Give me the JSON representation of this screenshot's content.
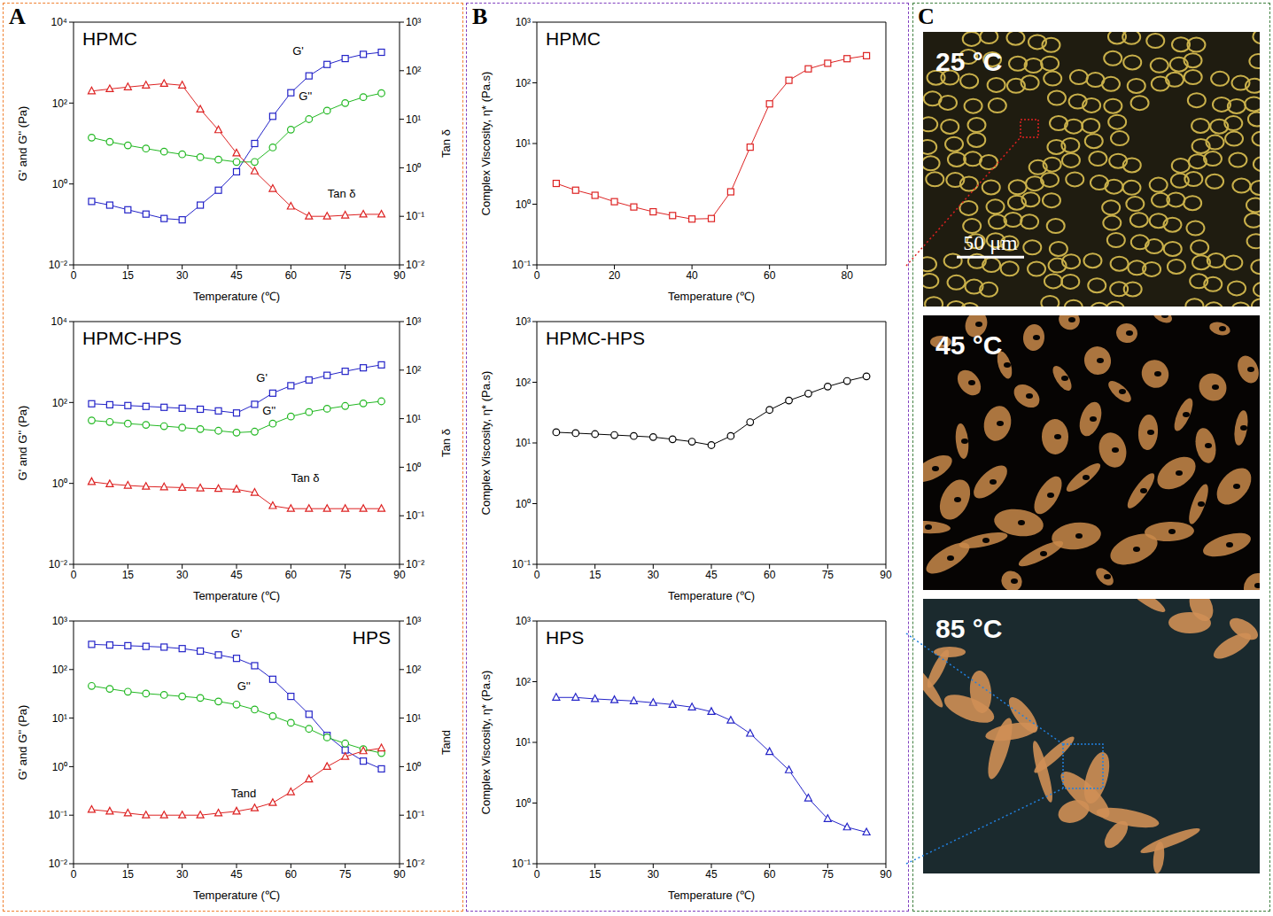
{
  "panel_letters": [
    "A",
    "B",
    "C"
  ],
  "chart_data": [
    {
      "type": "line",
      "title": "HPMC",
      "x_label": "Temperature (℃)",
      "y_label": "G' and G'' (Pa)",
      "y2_label": "Tan δ",
      "log": true,
      "x": [
        5,
        10,
        15,
        20,
        25,
        30,
        35,
        40,
        45,
        50,
        55,
        60,
        65,
        70,
        75,
        80,
        85
      ],
      "xlim": [
        0,
        90
      ],
      "xticks": [
        0,
        15,
        30,
        45,
        60,
        75,
        90
      ],
      "ylim": [
        0.01,
        10000
      ],
      "yticks": [
        {
          "value": 0.01,
          "label": "10⁻²"
        },
        {
          "value": 1,
          "label": "10⁰"
        },
        {
          "value": 100,
          "label": "10²"
        },
        {
          "value": 10000,
          "label": "10⁴"
        }
      ],
      "y2lim": [
        0.01,
        1000
      ],
      "y2ticks": [
        {
          "value": 0.01,
          "label": "10⁻²"
        },
        {
          "value": 0.1,
          "label": "10⁻¹"
        },
        {
          "value": 1,
          "label": "10⁰"
        },
        {
          "value": 10,
          "label": "10¹"
        },
        {
          "value": 100,
          "label": "10²"
        },
        {
          "value": 1000,
          "label": "10³"
        }
      ],
      "series": [
        {
          "name": "G'",
          "color": "#2424c8",
          "marker": "square",
          "values": [
            0.37,
            0.3,
            0.23,
            0.18,
            0.14,
            0.13,
            0.3,
            0.7,
            2,
            10,
            47,
            180,
            470,
            900,
            1260,
            1600,
            1800
          ]
        },
        {
          "name": "G''",
          "color": "#22b822",
          "marker": "circle",
          "values": [
            14,
            11,
            9,
            7.5,
            6.3,
            5.4,
            4.6,
            4,
            3.5,
            3.5,
            8,
            22,
            40,
            65,
            100,
            140,
            175
          ]
        },
        {
          "name": "Tan δ",
          "color": "#dd2222",
          "marker": "triangle",
          "axis": "y2",
          "values": [
            38,
            42,
            46,
            50,
            54,
            50,
            16,
            6,
            2,
            0.85,
            0.37,
            0.16,
            0.1,
            0.1,
            0.105,
            0.11,
            0.11
          ]
        }
      ],
      "annotations": [
        {
          "text": "G'",
          "x": 62,
          "y": 2000,
          "axis": "y"
        },
        {
          "text": "G''",
          "x": 64,
          "y": 150,
          "axis": "y"
        },
        {
          "text": "Tan δ",
          "x": 74,
          "y": 0.3,
          "axis": "y2"
        }
      ]
    },
    {
      "type": "line",
      "title": "HPMC-HPS",
      "x_label": "Temperature (℃)",
      "y_label": "G' and G'' (Pa)",
      "y2_label": "Tan δ",
      "log": true,
      "x": [
        5,
        10,
        15,
        20,
        25,
        30,
        35,
        40,
        45,
        50,
        55,
        60,
        65,
        70,
        75,
        80,
        85
      ],
      "xlim": [
        0,
        90
      ],
      "xticks": [
        0,
        15,
        30,
        45,
        60,
        75,
        90
      ],
      "ylim": [
        0.01,
        10000
      ],
      "yticks": [
        {
          "value": 0.01,
          "label": "10⁻²"
        },
        {
          "value": 1,
          "label": "10⁰"
        },
        {
          "value": 100,
          "label": "10²"
        },
        {
          "value": 10000,
          "label": "10⁴"
        }
      ],
      "y2lim": [
        0.01,
        1000
      ],
      "y2ticks": [
        {
          "value": 0.01,
          "label": "10⁻²"
        },
        {
          "value": 0.1,
          "label": "10⁻¹"
        },
        {
          "value": 1,
          "label": "10⁰"
        },
        {
          "value": 10,
          "label": "10¹"
        },
        {
          "value": 100,
          "label": "10²"
        },
        {
          "value": 1000,
          "label": "10³"
        }
      ],
      "series": [
        {
          "name": "G'",
          "color": "#2424c8",
          "marker": "square",
          "values": [
            93,
            88,
            84,
            80,
            76,
            72,
            68,
            62,
            55,
            90,
            170,
            260,
            360,
            470,
            590,
            720,
            850
          ]
        },
        {
          "name": "G''",
          "color": "#22b822",
          "marker": "circle",
          "values": [
            36,
            33,
            30,
            28,
            26,
            24,
            22,
            20,
            18,
            19,
            30,
            45,
            58,
            70,
            82,
            95,
            107
          ]
        },
        {
          "name": "Tan δ",
          "color": "#dd2222",
          "marker": "triangle",
          "axis": "y2",
          "values": [
            0.5,
            0.45,
            0.42,
            0.4,
            0.39,
            0.38,
            0.37,
            0.36,
            0.35,
            0.3,
            0.16,
            0.14,
            0.14,
            0.14,
            0.14,
            0.14,
            0.14
          ]
        }
      ],
      "annotations": [
        {
          "text": "G'",
          "x": 52,
          "y": 400,
          "axis": "y"
        },
        {
          "text": "G''",
          "x": 54,
          "y": 62,
          "axis": "y"
        },
        {
          "text": "Tan δ",
          "x": 64,
          "y": 0.6,
          "axis": "y2"
        }
      ]
    },
    {
      "type": "line",
      "title": "HPS",
      "x_label": "Temperature (℃)",
      "y_label": "G' and G'' (Pa)",
      "y2_label": "Tand",
      "log": true,
      "x": [
        5,
        10,
        15,
        20,
        25,
        30,
        35,
        40,
        45,
        50,
        55,
        60,
        65,
        70,
        75,
        80,
        85
      ],
      "xlim": [
        0,
        90
      ],
      "xticks": [
        0,
        15,
        30,
        45,
        60,
        75,
        90
      ],
      "ylim": [
        0.01,
        1000
      ],
      "yticks": [
        {
          "value": 0.01,
          "label": "10⁻²"
        },
        {
          "value": 0.1,
          "label": "10⁻¹"
        },
        {
          "value": 1,
          "label": "10⁰"
        },
        {
          "value": 10,
          "label": "10¹"
        },
        {
          "value": 100,
          "label": "10²"
        },
        {
          "value": 1000,
          "label": "10³"
        }
      ],
      "y2lim": [
        0.01,
        1000
      ],
      "y2ticks": [
        {
          "value": 0.01,
          "label": "10⁻²"
        },
        {
          "value": 0.1,
          "label": "10⁻¹"
        },
        {
          "value": 1,
          "label": "10⁰"
        },
        {
          "value": 10,
          "label": "10¹"
        },
        {
          "value": 100,
          "label": "10²"
        },
        {
          "value": 1000,
          "label": "10³"
        }
      ],
      "series": [
        {
          "name": "G'",
          "color": "#2424c8",
          "marker": "square",
          "values": [
            330,
            320,
            310,
            300,
            290,
            270,
            240,
            200,
            170,
            120,
            63,
            28,
            12,
            4.4,
            2.2,
            1.3,
            0.9
          ]
        },
        {
          "name": "G''",
          "color": "#22b822",
          "marker": "circle",
          "values": [
            46,
            40,
            35,
            32,
            30,
            28,
            26,
            22,
            19,
            15,
            11,
            8,
            6,
            4,
            3,
            2.3,
            1.9
          ]
        },
        {
          "name": "Tand",
          "color": "#dd2222",
          "marker": "triangle",
          "axis": "y2",
          "values": [
            0.13,
            0.12,
            0.11,
            0.1,
            0.1,
            0.1,
            0.1,
            0.11,
            0.12,
            0.14,
            0.18,
            0.3,
            0.55,
            1,
            1.6,
            2.1,
            2.4
          ]
        }
      ],
      "annotations": [
        {
          "text": "G'",
          "x": 45,
          "y": 550,
          "axis": "y"
        },
        {
          "text": "G''",
          "x": 47,
          "y": 45,
          "axis": "y"
        },
        {
          "text": "Tand",
          "x": 47,
          "y": 0.28,
          "axis": "y2"
        }
      ]
    },
    {
      "type": "line",
      "title": "HPMC",
      "x_label": "Temperature (℃)",
      "y_label": "Complex Viscosity, η* (Pa.s)",
      "log": "y",
      "x": [
        5,
        10,
        15,
        20,
        25,
        30,
        35,
        40,
        45,
        50,
        55,
        60,
        65,
        70,
        75,
        80,
        85
      ],
      "xlim": [
        0,
        90
      ],
      "xticks": [
        0,
        20,
        40,
        60,
        80
      ],
      "ylim": [
        0.1,
        1000
      ],
      "yticks": [
        {
          "value": 0.1,
          "label": "10⁻¹"
        },
        {
          "value": 1,
          "label": "10⁰"
        },
        {
          "value": 10,
          "label": "10¹"
        },
        {
          "value": 100,
          "label": "10²"
        },
        {
          "value": 1000,
          "label": "10³"
        }
      ],
      "series": [
        {
          "name": "HPMC",
          "color": "#dd2222",
          "marker": "square",
          "values": [
            2.2,
            1.7,
            1.4,
            1.1,
            0.9,
            0.75,
            0.65,
            0.57,
            0.58,
            1.6,
            8.7,
            45,
            110,
            170,
            210,
            250,
            280
          ]
        }
      ]
    },
    {
      "type": "line",
      "title": "HPMC-HPS",
      "x_label": "Temperature (℃)",
      "y_label": "Complex Viscosity, η* (Pa.s)",
      "log": "y",
      "x": [
        5,
        10,
        15,
        20,
        25,
        30,
        35,
        40,
        45,
        50,
        55,
        60,
        65,
        70,
        75,
        80,
        85
      ],
      "xlim": [
        0,
        90
      ],
      "xticks": [
        0,
        15,
        30,
        45,
        60,
        75,
        90
      ],
      "ylim": [
        0.1,
        1000
      ],
      "yticks": [
        {
          "value": 0.1,
          "label": "10⁻¹"
        },
        {
          "value": 1,
          "label": "10⁰"
        },
        {
          "value": 10,
          "label": "10¹"
        },
        {
          "value": 100,
          "label": "10²"
        },
        {
          "value": 1000,
          "label": "10³"
        }
      ],
      "series": [
        {
          "name": "HPMC-HPS",
          "color": "#000000",
          "marker": "circle",
          "values": [
            15,
            14.5,
            14,
            13.5,
            13,
            12.5,
            11.5,
            10.5,
            9.2,
            13,
            22,
            35,
            50,
            65,
            85,
            105,
            125
          ]
        }
      ]
    },
    {
      "type": "line",
      "title": "HPS",
      "x_label": "Temperature (℃)",
      "y_label": "Complex Viscosity, η* (Pa.s)",
      "log": "y",
      "x": [
        5,
        10,
        15,
        20,
        25,
        30,
        35,
        40,
        45,
        50,
        55,
        60,
        65,
        70,
        75,
        80,
        85
      ],
      "xlim": [
        0,
        90
      ],
      "xticks": [
        0,
        15,
        30,
        45,
        60,
        75,
        90
      ],
      "ylim": [
        0.1,
        1000
      ],
      "yticks": [
        {
          "value": 0.1,
          "label": "10⁻¹"
        },
        {
          "value": 1,
          "label": "10⁰"
        },
        {
          "value": 10,
          "label": "10¹"
        },
        {
          "value": 100,
          "label": "10²"
        },
        {
          "value": 1000,
          "label": "10³"
        }
      ],
      "series": [
        {
          "name": "HPS",
          "color": "#2424c8",
          "marker": "triangle",
          "values": [
            55,
            55,
            52,
            50,
            48,
            45,
            42,
            38,
            32,
            23,
            14,
            7,
            3.5,
            1.2,
            0.55,
            0.4,
            0.33
          ]
        }
      ]
    }
  ],
  "micrographs": [
    {
      "label": "25 °C",
      "scale_bar": "50 μm"
    },
    {
      "label": "45 °C"
    },
    {
      "label": "85 °C"
    }
  ]
}
